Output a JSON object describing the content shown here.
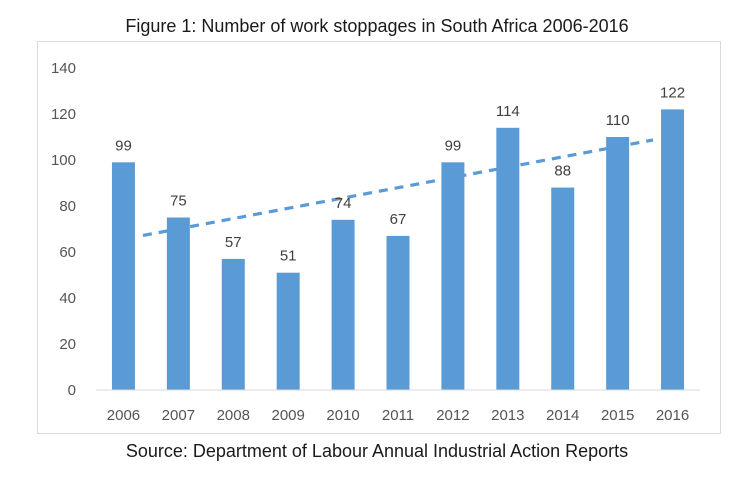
{
  "figure": {
    "title": "Figure 1: Number of work stoppages in South Africa 2006-2016",
    "source": "Source: Department of Labour Annual Industrial Action Reports"
  },
  "chart_data": {
    "type": "bar",
    "title": "Figure 1: Number of work stoppages in South Africa 2006-2016",
    "xlabel": "",
    "ylabel": "",
    "categories": [
      "2006",
      "2007",
      "2008",
      "2009",
      "2010",
      "2011",
      "2012",
      "2013",
      "2014",
      "2015",
      "2016"
    ],
    "values": [
      99,
      75,
      57,
      51,
      74,
      67,
      99,
      114,
      88,
      110,
      122
    ],
    "data_labels": [
      "99",
      "75",
      "57",
      "51",
      "74",
      "67",
      "99",
      "114",
      "88",
      "110",
      "122"
    ],
    "ylim": [
      0,
      140
    ],
    "yticks": [
      0,
      20,
      40,
      60,
      80,
      100,
      120,
      140
    ],
    "ytick_labels": [
      "0",
      "20",
      "40",
      "60",
      "80",
      "100",
      "120",
      "140"
    ],
    "grid": false,
    "bar_color": "#5B9BD5",
    "trendline": {
      "type": "linear",
      "style": "dashed",
      "color": "#5B9BD5",
      "start": 65.6,
      "end": 110.3
    }
  }
}
